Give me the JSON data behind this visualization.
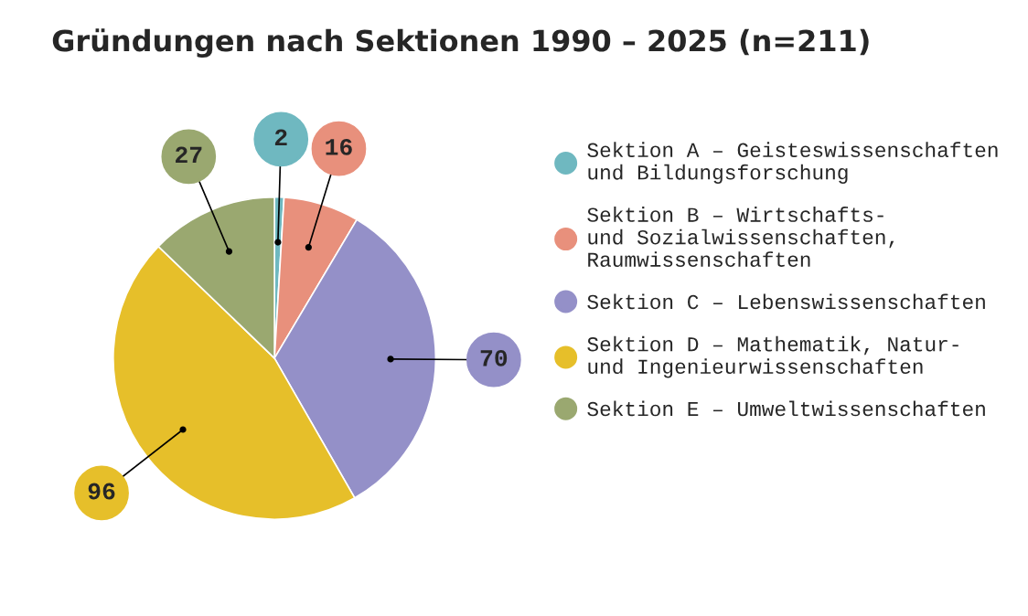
{
  "chart_data": {
    "type": "pie",
    "title": "Gründungen nach Sektionen 1990 – 2025 (n=211)",
    "categories": [
      "Sektion A – Geisteswissenschaften\nund Bildungsforschung",
      "Sektion B – Wirtschafts-\nund Sozialwissenschaften,\nRaumwissenschaften",
      "Sektion C – Lebenswissenschaften",
      "Sektion D – Mathematik, Natur-\nund Ingenieurwissenschaften",
      "Sektion E – Umweltwissenschaften"
    ],
    "values": [
      2,
      16,
      70,
      96,
      27
    ],
    "colors": [
      "#6fb8c0",
      "#e8907c",
      "#9490c8",
      "#e6bf2a",
      "#9aa870"
    ],
    "data_labels": true,
    "legend": "right"
  }
}
